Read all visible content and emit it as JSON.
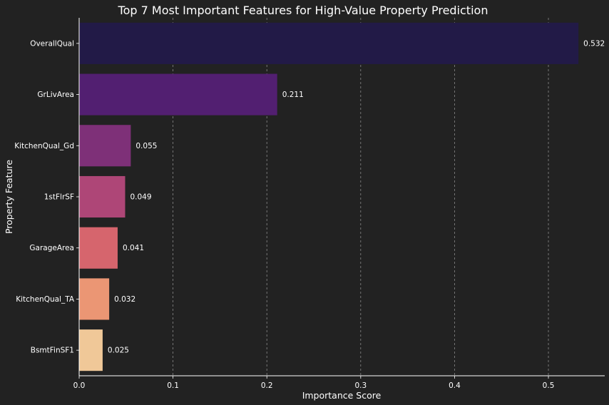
{
  "chart_data": {
    "type": "bar",
    "orientation": "horizontal",
    "title": "Top 7 Most Important Features for High-Value Property Prediction",
    "xlabel": "Importance Score",
    "ylabel": "Property Feature",
    "categories": [
      "OverallQual",
      "GrLivArea",
      "KitchenQual_Gd",
      "1stFlrSF",
      "GarageArea",
      "KitchenQual_TA",
      "BsmtFinSF1"
    ],
    "values": [
      0.532,
      0.211,
      0.055,
      0.049,
      0.041,
      0.032,
      0.025
    ],
    "value_labels": [
      "0.532",
      "0.211",
      "0.055",
      "0.049",
      "0.041",
      "0.032",
      "0.025"
    ],
    "colors": [
      "#221a47",
      "#521f71",
      "#7e3078",
      "#ae4677",
      "#d6656d",
      "#eb9674",
      "#f0c898"
    ],
    "xlim": [
      0,
      0.56
    ],
    "xticks": [
      0.0,
      0.1,
      0.2,
      0.3,
      0.4,
      0.5
    ],
    "xtick_labels": [
      "0.0",
      "0.1",
      "0.2",
      "0.3",
      "0.4",
      "0.5"
    ],
    "grid": "x-dashed",
    "background": "#222222",
    "text_color": "#ffffff"
  }
}
